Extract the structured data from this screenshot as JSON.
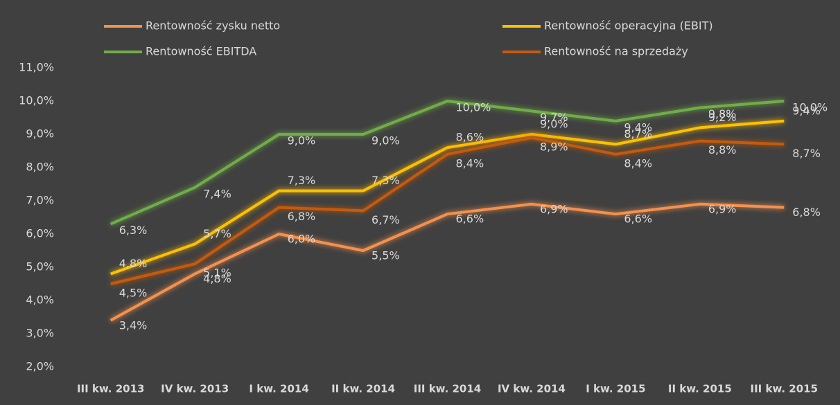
{
  "chart_data": {
    "type": "line",
    "categories": [
      "III kw. 2013",
      "IV kw. 2013",
      "I kw. 2014",
      "II kw. 2014",
      "III kw. 2014",
      "IV kw. 2014",
      "I kw. 2015",
      "II kw. 2015",
      "III kw. 2015"
    ],
    "series": [
      {
        "name": "Rentowność zysku netto",
        "color": "#f4914d",
        "values": [
          3.4,
          4.8,
          6.0,
          5.5,
          6.6,
          6.9,
          6.6,
          6.9,
          6.8
        ],
        "value_labels": [
          "3,4%",
          "4,8%",
          "6,0%",
          "5,5%",
          "6,6%",
          "6,9%",
          "6,6%",
          "6,9%",
          "6,8%"
        ]
      },
      {
        "name": "Rentowność operacyjna (EBIT)",
        "color": "#ffc000",
        "values": [
          4.8,
          5.7,
          7.3,
          7.3,
          8.6,
          9.0,
          8.7,
          9.2,
          9.4
        ],
        "value_labels": [
          "4,8%",
          "5,7%",
          "7,3%",
          "7,3%",
          "8,6%",
          "9,0%",
          "8,7%",
          "9,2%",
          "9,4%"
        ]
      },
      {
        "name": "Rentowność EBITDA",
        "color": "#70ad47",
        "values": [
          6.3,
          7.4,
          9.0,
          9.0,
          10.0,
          9.7,
          9.4,
          9.8,
          10.0
        ],
        "value_labels": [
          "6,3%",
          "7,4%",
          "9,0%",
          "9,0%",
          "10,0%",
          "9,7%",
          "9,4%",
          "9,8%",
          "10,0%"
        ]
      },
      {
        "name": "Rentowność na sprzedaży",
        "color": "#c55a11",
        "values": [
          4.5,
          5.1,
          6.8,
          6.7,
          8.4,
          8.9,
          8.4,
          8.8,
          8.7
        ],
        "value_labels": [
          "4,5%",
          "5,1%",
          "6,8%",
          "6,7%",
          "8,4%",
          "8,9%",
          "8,4%",
          "8,8%",
          "8,7%"
        ]
      }
    ],
    "ylim": [
      2,
      11
    ],
    "yticks": [
      {
        "value": 2,
        "label": "2,0%"
      },
      {
        "value": 3,
        "label": "3,0%"
      },
      {
        "value": 4,
        "label": "4,0%"
      },
      {
        "value": 5,
        "label": "5,0%"
      },
      {
        "value": 6,
        "label": "6,0%"
      },
      {
        "value": 7,
        "label": "7,0%"
      },
      {
        "value": 8,
        "label": "8,0%"
      },
      {
        "value": 9,
        "label": "9,0%"
      },
      {
        "value": 10,
        "label": "10,0%"
      },
      {
        "value": 11,
        "label": "11,0%"
      }
    ],
    "legend": "top",
    "grid": false
  }
}
